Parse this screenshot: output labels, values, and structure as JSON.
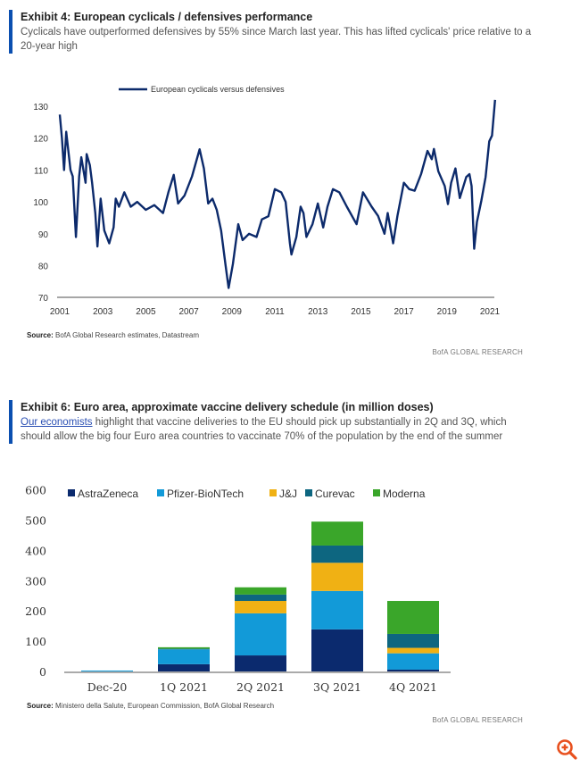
{
  "exhibit4": {
    "title": "Exhibit 4: European cyclicals / defensives performance",
    "subtitle": "Cyclicals have outperformed defensives by 55% since March last year. This has lifted cyclicals' price relative to a 20-year high",
    "source_label": "Source:",
    "source_text": "BofA Global Research estimates, Datastream",
    "brand": "BofA GLOBAL RESEARCH"
  },
  "exhibit6": {
    "title": "Exhibit 6: Euro area, approximate vaccine delivery schedule (in million doses)",
    "subtitle_link": "Our economists",
    "subtitle_rest": " highlight that vaccine deliveries to the EU should pick up substantially in 2Q and 3Q, which should allow the big four Euro area countries to vaccinate 70% of the population by the end of the summer",
    "source_label": "Source:",
    "source_text": "Ministero della Salute, European Commission, BofA Global Research",
    "brand": "BofA GLOBAL RESEARCH"
  },
  "zoom_icon": {
    "name": "zoom-in-icon",
    "color": "#e8501e"
  },
  "chart_data": [
    {
      "type": "line",
      "title": "",
      "xlabel": "",
      "ylabel": "",
      "xlim": [
        2001,
        2021.3
      ],
      "ylim": [
        70,
        132
      ],
      "xticks": [
        "2001",
        "2003",
        "2005",
        "2007",
        "2009",
        "2011",
        "2013",
        "2015",
        "2017",
        "2019",
        "2021"
      ],
      "yticks": [
        "70",
        "80",
        "90",
        "100",
        "110",
        "120",
        "130"
      ],
      "grid": false,
      "legend": "top-center",
      "series": [
        {
          "name": "European cyclicals versus defensives",
          "color": "#0c2a6b",
          "points": [
            [
              2001.0,
              127.4
            ],
            [
              2001.1,
              120
            ],
            [
              2001.2,
              110
            ],
            [
              2001.3,
              122
            ],
            [
              2001.5,
              110
            ],
            [
              2001.6,
              108
            ],
            [
              2001.75,
              89
            ],
            [
              2001.9,
              108
            ],
            [
              2002.0,
              114
            ],
            [
              2002.2,
              106
            ],
            [
              2002.25,
              115
            ],
            [
              2002.4,
              111.5
            ],
            [
              2002.5,
              106
            ],
            [
              2002.65,
              96.5
            ],
            [
              2002.75,
              86
            ],
            [
              2002.9,
              101
            ],
            [
              2003.07,
              91
            ],
            [
              2003.3,
              87
            ],
            [
              2003.5,
              92
            ],
            [
              2003.6,
              101
            ],
            [
              2003.75,
              98.5
            ],
            [
              2004.0,
              103
            ],
            [
              2004.3,
              98.5
            ],
            [
              2004.6,
              100
            ],
            [
              2005.0,
              97.5
            ],
            [
              2005.4,
              99
            ],
            [
              2005.8,
              96.5
            ],
            [
              2006.05,
              103
            ],
            [
              2006.3,
              108.5
            ],
            [
              2006.5,
              99.5
            ],
            [
              2006.8,
              102
            ],
            [
              2007.15,
              108
            ],
            [
              2007.5,
              116.5
            ],
            [
              2007.7,
              110.5
            ],
            [
              2007.9,
              99.5
            ],
            [
              2008.1,
              101
            ],
            [
              2008.3,
              97.5
            ],
            [
              2008.5,
              91
            ],
            [
              2008.7,
              80.5
            ],
            [
              2008.85,
              73
            ],
            [
              2009.05,
              80.5
            ],
            [
              2009.3,
              93
            ],
            [
              2009.5,
              88
            ],
            [
              2009.8,
              90
            ],
            [
              2010.15,
              89
            ],
            [
              2010.4,
              94.5
            ],
            [
              2010.7,
              95.5
            ],
            [
              2011.0,
              104
            ],
            [
              2011.3,
              103
            ],
            [
              2011.5,
              100
            ],
            [
              2011.7,
              87
            ],
            [
              2011.77,
              83.5
            ],
            [
              2012.0,
              89
            ],
            [
              2012.2,
              98.5
            ],
            [
              2012.33,
              96.5
            ],
            [
              2012.47,
              89
            ],
            [
              2012.75,
              93
            ],
            [
              2013.0,
              99.5
            ],
            [
              2013.25,
              92
            ],
            [
              2013.45,
              98.5
            ],
            [
              2013.7,
              104
            ],
            [
              2014.0,
              103
            ],
            [
              2014.35,
              98.5
            ],
            [
              2014.8,
              93
            ],
            [
              2015.1,
              103
            ],
            [
              2015.5,
              98.5
            ],
            [
              2015.8,
              95.6
            ],
            [
              2016.1,
              90
            ],
            [
              2016.25,
              96.5
            ],
            [
              2016.5,
              87
            ],
            [
              2016.7,
              95.6
            ],
            [
              2017.0,
              106
            ],
            [
              2017.25,
              104
            ],
            [
              2017.5,
              103.5
            ],
            [
              2017.8,
              108.7
            ],
            [
              2018.1,
              116
            ],
            [
              2018.3,
              113.4
            ],
            [
              2018.4,
              116.6
            ],
            [
              2018.6,
              109.6
            ],
            [
              2018.9,
              105
            ],
            [
              2019.05,
              99.3
            ],
            [
              2019.2,
              106
            ],
            [
              2019.4,
              110.5
            ],
            [
              2019.6,
              101.2
            ],
            [
              2019.9,
              107.8
            ],
            [
              2020.05,
              108.7
            ],
            [
              2020.15,
              105
            ],
            [
              2020.27,
              85.3
            ],
            [
              2020.4,
              93.7
            ],
            [
              2020.6,
              100.3
            ],
            [
              2020.8,
              107.8
            ],
            [
              2020.97,
              119
            ],
            [
              2021.1,
              120.8
            ],
            [
              2021.24,
              132
            ]
          ]
        }
      ]
    },
    {
      "type": "bar",
      "stacked": true,
      "title": "",
      "xlabel": "",
      "ylabel": "",
      "ylim": [
        0,
        600
      ],
      "yticks": [
        "0",
        "100",
        "200",
        "300",
        "400",
        "500",
        "600"
      ],
      "grid": false,
      "legend": "top",
      "categories": [
        "Dec-20",
        "1Q 2021",
        "2Q 2021",
        "3Q 2021",
        "4Q 2021"
      ],
      "series": [
        {
          "name": "AstraZeneca",
          "color": "#0b2a6e",
          "values": [
            0,
            24,
            53,
            139,
            6
          ]
        },
        {
          "name": "Pfizer-BioNTech",
          "color": "#129ad8",
          "values": [
            3,
            49,
            139,
            127,
            54
          ]
        },
        {
          "name": "J&J",
          "color": "#f0b114",
          "values": [
            0,
            0,
            41,
            93,
            18
          ]
        },
        {
          "name": "Curevac",
          "color": "#0d6680",
          "values": [
            0,
            2,
            21,
            57,
            46
          ]
        },
        {
          "name": "Moderna",
          "color": "#3aa62a",
          "values": [
            0,
            5,
            24,
            79,
            109
          ]
        }
      ]
    }
  ]
}
